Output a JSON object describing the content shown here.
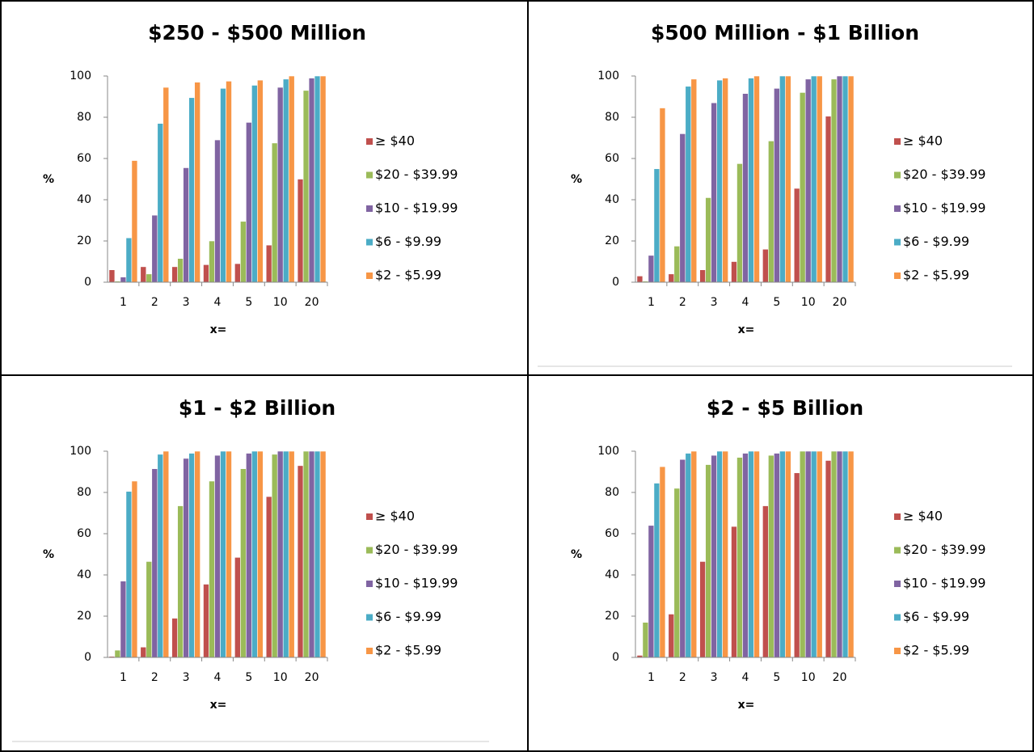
{
  "chart_data": [
    {
      "type": "bar",
      "title": "$250 - $500 Million",
      "xlabel": "x=",
      "ylabel": "%",
      "categories": [
        "1",
        "2",
        "3",
        "4",
        "5",
        "10",
        "20"
      ],
      "series": [
        {
          "name": "≥ $40",
          "color": "#c0504d",
          "values": [
            6,
            7.5,
            7.5,
            8.5,
            9,
            18,
            50
          ]
        },
        {
          "name": "$20 - $39.99",
          "color": "#9bbb59",
          "values": [
            0.5,
            4,
            11.5,
            20,
            29.5,
            67.5,
            93
          ]
        },
        {
          "name": "$10 - $19.99",
          "color": "#8064a2",
          "values": [
            2.5,
            32.5,
            55.5,
            69,
            77.5,
            94.5,
            99
          ]
        },
        {
          "name": "$6 - $9.99",
          "color": "#4bacc6",
          "values": [
            21.5,
            77,
            89.5,
            94,
            95.5,
            98.5,
            100
          ]
        },
        {
          "name": "$2 - $5.99",
          "color": "#f79646",
          "values": [
            59,
            94.5,
            97,
            97.5,
            98,
            100,
            100
          ]
        }
      ],
      "ylim": [
        0,
        100
      ],
      "yticks": [
        0,
        20,
        40,
        60,
        80,
        100
      ],
      "grid": false,
      "legend": "right"
    },
    {
      "type": "bar",
      "title": "$500 Million - $1 Billion",
      "xlabel": "x=",
      "ylabel": "%",
      "categories": [
        "1",
        "2",
        "3",
        "4",
        "5",
        "10",
        "20"
      ],
      "series": [
        {
          "name": "≥ $40",
          "color": "#c0504d",
          "values": [
            3,
            4,
            6,
            10,
            16,
            45.5,
            80.5
          ]
        },
        {
          "name": "$20 - $39.99",
          "color": "#9bbb59",
          "values": [
            0.5,
            17.5,
            41,
            57.5,
            68.5,
            92,
            98.5
          ]
        },
        {
          "name": "$10 - $19.99",
          "color": "#8064a2",
          "values": [
            13,
            72,
            87,
            91.5,
            94,
            98.5,
            100
          ]
        },
        {
          "name": "$6 - $9.99",
          "color": "#4bacc6",
          "values": [
            55,
            95,
            98,
            99,
            100,
            100,
            100
          ]
        },
        {
          "name": "$2 - $5.99",
          "color": "#f79646",
          "values": [
            84.5,
            98.5,
            99,
            100,
            100,
            100,
            100
          ]
        }
      ],
      "ylim": [
        0,
        100
      ],
      "yticks": [
        0,
        20,
        40,
        60,
        80,
        100
      ],
      "grid": false,
      "legend": "right"
    },
    {
      "type": "bar",
      "title": "$1 - $2 Billion",
      "xlabel": "x=",
      "ylabel": "%",
      "categories": [
        "1",
        "2",
        "3",
        "4",
        "5",
        "10",
        "20"
      ],
      "series": [
        {
          "name": "≥ $40",
          "color": "#c0504d",
          "values": [
            0.5,
            5,
            19,
            35.5,
            48.5,
            78,
            93
          ]
        },
        {
          "name": "$20 - $39.99",
          "color": "#9bbb59",
          "values": [
            3.5,
            46.5,
            73.5,
            85.5,
            91.5,
            98.5,
            100
          ]
        },
        {
          "name": "$10 - $19.99",
          "color": "#8064a2",
          "values": [
            37,
            91.5,
            96.5,
            98,
            99,
            100,
            100
          ]
        },
        {
          "name": "$6 - $9.99",
          "color": "#4bacc6",
          "values": [
            80.5,
            98.5,
            99,
            100,
            100,
            100,
            100
          ]
        },
        {
          "name": "$2 - $5.99",
          "color": "#f79646",
          "values": [
            85.5,
            100,
            100,
            100,
            100,
            100,
            100
          ]
        }
      ],
      "ylim": [
        0,
        100
      ],
      "yticks": [
        0,
        20,
        40,
        60,
        80,
        100
      ],
      "grid": false,
      "legend": "right"
    },
    {
      "type": "bar",
      "title": "$2 - $5 Billion",
      "xlabel": "x=",
      "ylabel": "%",
      "categories": [
        "1",
        "2",
        "3",
        "4",
        "5",
        "10",
        "20"
      ],
      "series": [
        {
          "name": "≥ $40",
          "color": "#c0504d",
          "values": [
            1,
            21,
            46.5,
            63.5,
            73.5,
            89.5,
            95.5
          ]
        },
        {
          "name": "$20 - $39.99",
          "color": "#9bbb59",
          "values": [
            17,
            82,
            93.5,
            97,
            98,
            100,
            100
          ]
        },
        {
          "name": "$10 - $19.99",
          "color": "#8064a2",
          "values": [
            64,
            96,
            98,
            99,
            99,
            100,
            100
          ]
        },
        {
          "name": "$6 - $9.99",
          "color": "#4bacc6",
          "values": [
            84.5,
            99,
            100,
            100,
            100,
            100,
            100
          ]
        },
        {
          "name": "$2 - $5.99",
          "color": "#f79646",
          "values": [
            92.5,
            100,
            100,
            100,
            100,
            100,
            100
          ]
        }
      ],
      "ylim": [
        0,
        100
      ],
      "yticks": [
        0,
        20,
        40,
        60,
        80,
        100
      ],
      "grid": false,
      "legend": "right"
    }
  ]
}
